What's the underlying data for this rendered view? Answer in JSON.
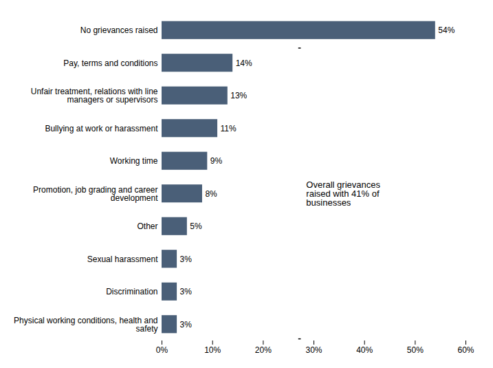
{
  "chart_data": {
    "type": "bar",
    "orientation": "horizontal",
    "categories": [
      "Physical working conditions, health and\nsafety",
      "Discrimination",
      "Sexual harassment",
      "Other",
      "Promotion, job grading and career\ndevelopment",
      "Working time",
      "Bullying at work or harassment",
      "Unfair treatment, relations with line\nmanagers or supervisors",
      "Pay, terms and conditions",
      "No grievances raised"
    ],
    "values": [
      3,
      3,
      3,
      5,
      8,
      9,
      11,
      13,
      14,
      54
    ],
    "value_labels": [
      "3%",
      "3%",
      "3%",
      "5%",
      "8%",
      "9%",
      "11%",
      "13%",
      "14%",
      "54%"
    ],
    "data_labels": true,
    "color": "#4a5f78",
    "xlim": [
      0,
      60
    ],
    "xticks": [
      {
        "value": 0,
        "label": "0%"
      },
      {
        "value": 10,
        "label": "10%"
      },
      {
        "value": 20,
        "label": "20%"
      },
      {
        "value": 30,
        "label": "30%"
      },
      {
        "value": 40,
        "label": "40%"
      },
      {
        "value": 50,
        "label": "50%"
      },
      {
        "value": 60,
        "label": "60%"
      }
    ],
    "annotation": "Overall grievances\nraised with 41% of\nbusinesses",
    "grid": false
  }
}
